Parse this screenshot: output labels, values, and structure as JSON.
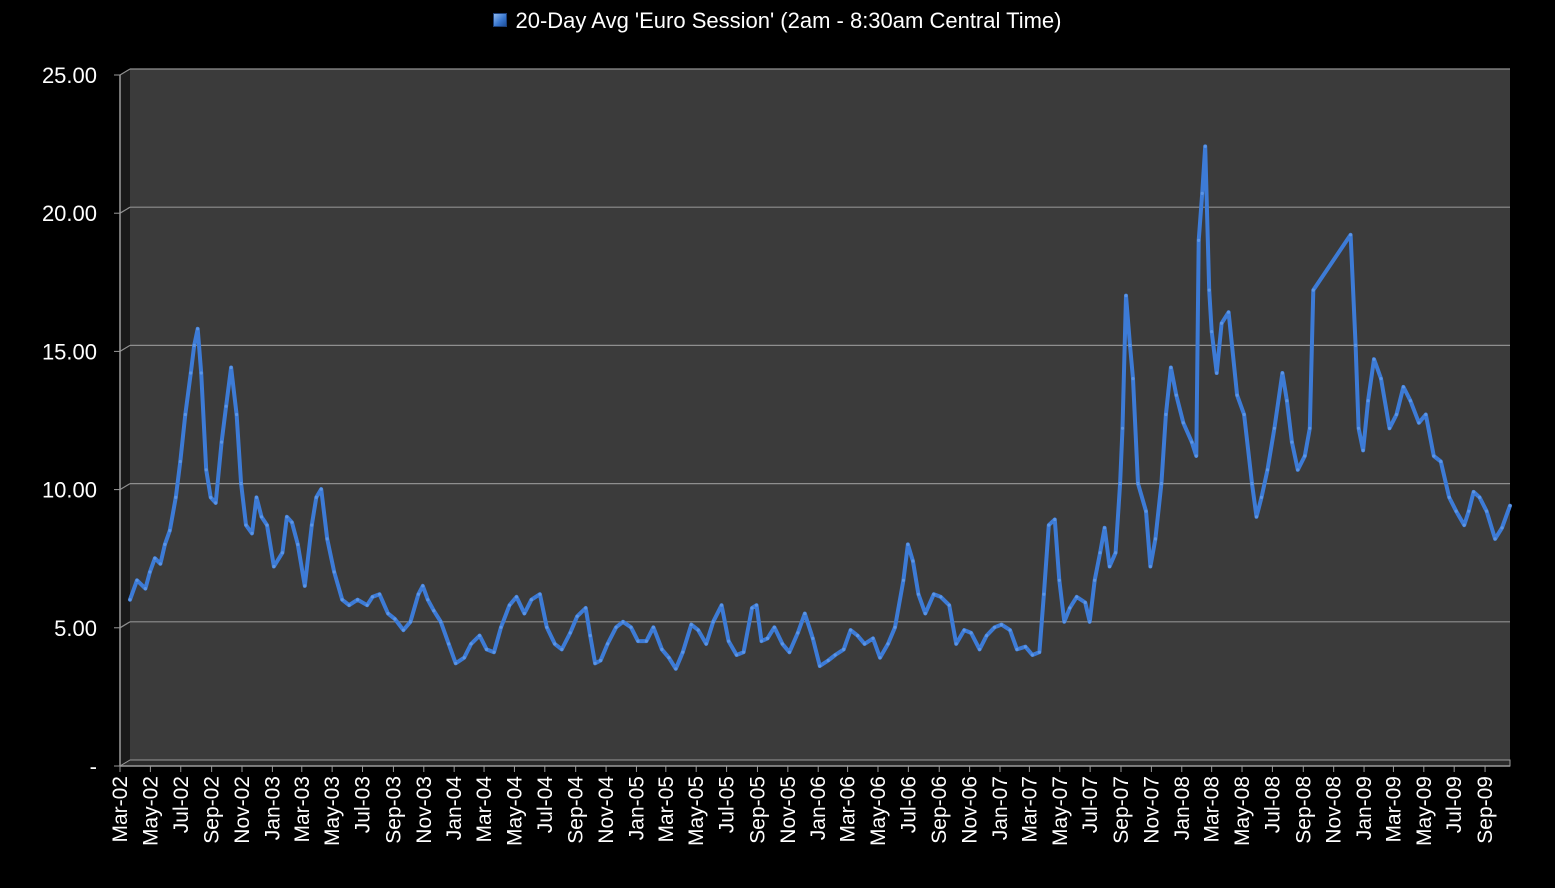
{
  "chart_data": {
    "type": "line",
    "legend": "20-Day Avg 'Euro Session' (2am - 8:30am Central Time)",
    "legend_position": "top",
    "ylim": [
      0,
      25
    ],
    "y_ticks": [
      "-",
      "5.00",
      "10.00",
      "15.00",
      "20.00",
      "25.00"
    ],
    "x_ticks": [
      "Mar-02",
      "May-02",
      "Jul-02",
      "Sep-02",
      "Nov-02",
      "Jan-03",
      "Mar-03",
      "May-03",
      "Jul-03",
      "Sep-03",
      "Nov-03",
      "Jan-04",
      "Mar-04",
      "May-04",
      "Jul-04",
      "Sep-04",
      "Nov-04",
      "Jan-05",
      "Mar-05",
      "May-05",
      "Jul-05",
      "Sep-05",
      "Nov-05",
      "Jan-06",
      "Mar-06",
      "May-06",
      "Jul-06",
      "Sep-06",
      "Nov-06",
      "Jan-07",
      "Mar-07",
      "May-07",
      "Jul-07",
      "Sep-07",
      "Nov-07",
      "Jan-08",
      "Mar-08",
      "May-08",
      "Jul-08",
      "Sep-08",
      "Nov-08",
      "Jan-09",
      "Mar-09",
      "May-09",
      "Jul-09",
      "Sep-09"
    ],
    "grid": true,
    "colors": {
      "line": "#3d7bd6",
      "plot_background": "#3b3b3b",
      "gridline": "#8f8f8f",
      "axis": "#9a9a9a",
      "page_background": "#000000"
    },
    "series": [
      {
        "name": "20-Day Avg 'Euro Session' (2am - 8:30am Central Time)",
        "points": [
          [
            "2002-03-01",
            5.8
          ],
          [
            "2002-03-15",
            6.5
          ],
          [
            "2002-04-01",
            6.2
          ],
          [
            "2002-04-10",
            6.8
          ],
          [
            "2002-04-20",
            7.3
          ],
          [
            "2002-05-01",
            7.1
          ],
          [
            "2002-05-10",
            7.8
          ],
          [
            "2002-05-20",
            8.3
          ],
          [
            "2002-06-01",
            9.5
          ],
          [
            "2002-06-10",
            10.8
          ],
          [
            "2002-06-20",
            12.5
          ],
          [
            "2002-07-01",
            14.0
          ],
          [
            "2002-07-08",
            15.0
          ],
          [
            "2002-07-15",
            15.6
          ],
          [
            "2002-07-22",
            14.0
          ],
          [
            "2002-08-01",
            10.5
          ],
          [
            "2002-08-10",
            9.5
          ],
          [
            "2002-08-20",
            9.3
          ],
          [
            "2002-09-01",
            11.5
          ],
          [
            "2002-09-10",
            12.8
          ],
          [
            "2002-09-20",
            14.2
          ],
          [
            "2002-10-01",
            12.5
          ],
          [
            "2002-10-10",
            10.0
          ],
          [
            "2002-10-20",
            8.5
          ],
          [
            "2002-11-01",
            8.2
          ],
          [
            "2002-11-10",
            9.5
          ],
          [
            "2002-11-20",
            8.8
          ],
          [
            "2002-12-01",
            8.5
          ],
          [
            "2002-12-15",
            7.0
          ],
          [
            "2003-01-01",
            7.5
          ],
          [
            "2003-01-10",
            8.8
          ],
          [
            "2003-01-20",
            8.6
          ],
          [
            "2003-02-01",
            7.8
          ],
          [
            "2003-02-15",
            6.3
          ],
          [
            "2003-03-01",
            8.5
          ],
          [
            "2003-03-10",
            9.5
          ],
          [
            "2003-03-20",
            9.8
          ],
          [
            "2003-04-01",
            8.0
          ],
          [
            "2003-04-15",
            6.8
          ],
          [
            "2003-05-01",
            5.8
          ],
          [
            "2003-05-15",
            5.6
          ],
          [
            "2003-06-01",
            5.8
          ],
          [
            "2003-06-20",
            5.6
          ],
          [
            "2003-07-01",
            5.9
          ],
          [
            "2003-07-15",
            6.0
          ],
          [
            "2003-08-01",
            5.3
          ],
          [
            "2003-08-15",
            5.1
          ],
          [
            "2003-09-01",
            4.7
          ],
          [
            "2003-09-15",
            5.0
          ],
          [
            "2003-10-01",
            6.0
          ],
          [
            "2003-10-10",
            6.3
          ],
          [
            "2003-10-20",
            5.8
          ],
          [
            "2003-11-01",
            5.4
          ],
          [
            "2003-11-15",
            5.0
          ],
          [
            "2003-12-01",
            4.2
          ],
          [
            "2003-12-15",
            3.5
          ],
          [
            "2004-01-01",
            3.7
          ],
          [
            "2004-01-15",
            4.2
          ],
          [
            "2004-02-01",
            4.5
          ],
          [
            "2004-02-15",
            4.0
          ],
          [
            "2004-03-01",
            3.9
          ],
          [
            "2004-03-15",
            4.8
          ],
          [
            "2004-04-01",
            5.6
          ],
          [
            "2004-04-15",
            5.9
          ],
          [
            "2004-05-01",
            5.3
          ],
          [
            "2004-05-15",
            5.8
          ],
          [
            "2004-06-01",
            6.0
          ],
          [
            "2004-06-15",
            4.8
          ],
          [
            "2004-07-01",
            4.2
          ],
          [
            "2004-07-15",
            4.0
          ],
          [
            "2004-08-01",
            4.6
          ],
          [
            "2004-08-15",
            5.2
          ],
          [
            "2004-09-01",
            5.5
          ],
          [
            "2004-09-10",
            4.5
          ],
          [
            "2004-09-20",
            3.5
          ],
          [
            "2004-10-01",
            3.6
          ],
          [
            "2004-10-15",
            4.2
          ],
          [
            "2004-11-01",
            4.8
          ],
          [
            "2004-11-15",
            5.0
          ],
          [
            "2004-12-01",
            4.8
          ],
          [
            "2004-12-15",
            4.3
          ],
          [
            "2005-01-01",
            4.3
          ],
          [
            "2005-01-15",
            4.8
          ],
          [
            "2005-02-01",
            4.0
          ],
          [
            "2005-02-15",
            3.7
          ],
          [
            "2005-03-01",
            3.3
          ],
          [
            "2005-03-15",
            3.9
          ],
          [
            "2005-04-01",
            4.9
          ],
          [
            "2005-04-15",
            4.7
          ],
          [
            "2005-05-01",
            4.2
          ],
          [
            "2005-05-15",
            5.0
          ],
          [
            "2005-06-01",
            5.6
          ],
          [
            "2005-06-15",
            4.3
          ],
          [
            "2005-07-01",
            3.8
          ],
          [
            "2005-07-15",
            3.9
          ],
          [
            "2005-08-01",
            5.5
          ],
          [
            "2005-08-10",
            5.6
          ],
          [
            "2005-08-20",
            4.3
          ],
          [
            "2005-09-01",
            4.4
          ],
          [
            "2005-09-15",
            4.8
          ],
          [
            "2005-10-01",
            4.2
          ],
          [
            "2005-10-15",
            3.9
          ],
          [
            "2005-11-01",
            4.6
          ],
          [
            "2005-11-15",
            5.3
          ],
          [
            "2005-12-01",
            4.4
          ],
          [
            "2005-12-15",
            3.4
          ],
          [
            "2006-01-01",
            3.6
          ],
          [
            "2006-01-15",
            3.8
          ],
          [
            "2006-02-01",
            4.0
          ],
          [
            "2006-02-15",
            4.7
          ],
          [
            "2006-03-01",
            4.5
          ],
          [
            "2006-03-15",
            4.2
          ],
          [
            "2006-04-01",
            4.4
          ],
          [
            "2006-04-15",
            3.7
          ],
          [
            "2006-05-01",
            4.2
          ],
          [
            "2006-05-15",
            4.8
          ],
          [
            "2006-06-01",
            6.5
          ],
          [
            "2006-06-10",
            7.8
          ],
          [
            "2006-06-20",
            7.2
          ],
          [
            "2006-07-01",
            6.0
          ],
          [
            "2006-07-15",
            5.3
          ],
          [
            "2006-08-01",
            6.0
          ],
          [
            "2006-08-15",
            5.9
          ],
          [
            "2006-09-01",
            5.6
          ],
          [
            "2006-09-15",
            4.2
          ],
          [
            "2006-10-01",
            4.7
          ],
          [
            "2006-10-15",
            4.6
          ],
          [
            "2006-11-01",
            4.0
          ],
          [
            "2006-11-15",
            4.5
          ],
          [
            "2006-12-01",
            4.8
          ],
          [
            "2006-12-15",
            4.9
          ],
          [
            "2007-01-01",
            4.7
          ],
          [
            "2007-01-15",
            4.0
          ],
          [
            "2007-02-01",
            4.1
          ],
          [
            "2007-02-15",
            3.8
          ],
          [
            "2007-03-01",
            3.9
          ],
          [
            "2007-03-10",
            6.0
          ],
          [
            "2007-03-20",
            8.5
          ],
          [
            "2007-04-01",
            8.7
          ],
          [
            "2007-04-10",
            6.5
          ],
          [
            "2007-04-20",
            5.0
          ],
          [
            "2007-05-01",
            5.5
          ],
          [
            "2007-05-15",
            5.9
          ],
          [
            "2007-06-01",
            5.7
          ],
          [
            "2007-06-10",
            5.0
          ],
          [
            "2007-06-20",
            6.5
          ],
          [
            "2007-07-01",
            7.5
          ],
          [
            "2007-07-10",
            8.4
          ],
          [
            "2007-07-20",
            7.0
          ],
          [
            "2007-08-01",
            7.5
          ],
          [
            "2007-08-10",
            10.0
          ],
          [
            "2007-08-15",
            12.0
          ],
          [
            "2007-08-22",
            16.8
          ],
          [
            "2007-08-30",
            15.0
          ],
          [
            "2007-09-05",
            13.8
          ],
          [
            "2007-09-15",
            10.0
          ],
          [
            "2007-10-01",
            9.0
          ],
          [
            "2007-10-10",
            7.0
          ],
          [
            "2007-10-20",
            8.0
          ],
          [
            "2007-11-01",
            10.0
          ],
          [
            "2007-11-10",
            12.5
          ],
          [
            "2007-11-20",
            14.2
          ],
          [
            "2007-12-01",
            13.2
          ],
          [
            "2007-12-15",
            12.2
          ],
          [
            "2008-01-01",
            11.5
          ],
          [
            "2008-01-10",
            11.0
          ],
          [
            "2008-01-15",
            18.8
          ],
          [
            "2008-01-22",
            20.5
          ],
          [
            "2008-01-28",
            22.2
          ],
          [
            "2008-02-05",
            17.0
          ],
          [
            "2008-02-10",
            15.5
          ],
          [
            "2008-02-20",
            14.0
          ],
          [
            "2008-03-01",
            15.8
          ],
          [
            "2008-03-15",
            16.2
          ],
          [
            "2008-04-01",
            13.2
          ],
          [
            "2008-04-15",
            12.5
          ],
          [
            "2008-05-01",
            10.0
          ],
          [
            "2008-05-10",
            8.8
          ],
          [
            "2008-05-20",
            9.5
          ],
          [
            "2008-06-01",
            10.5
          ],
          [
            "2008-06-15",
            12.0
          ],
          [
            "2008-07-01",
            14.0
          ],
          [
            "2008-07-10",
            13.0
          ],
          [
            "2008-07-20",
            11.5
          ],
          [
            "2008-08-01",
            10.5
          ],
          [
            "2008-08-15",
            11.0
          ],
          [
            "2008-08-25",
            12.0
          ],
          [
            "2008-09-01",
            17.0
          ],
          [
            "2008-11-15",
            19.0
          ],
          [
            "2008-11-25",
            15.0
          ],
          [
            "2008-12-01",
            12.0
          ],
          [
            "2008-12-10",
            11.2
          ],
          [
            "2008-12-20",
            13.0
          ],
          [
            "2009-01-01",
            14.5
          ],
          [
            "2009-01-15",
            13.8
          ],
          [
            "2009-02-01",
            12.0
          ],
          [
            "2009-02-15",
            12.5
          ],
          [
            "2009-03-01",
            13.5
          ],
          [
            "2009-03-15",
            13.0
          ],
          [
            "2009-04-01",
            12.2
          ],
          [
            "2009-04-15",
            12.5
          ],
          [
            "2009-05-01",
            11.0
          ],
          [
            "2009-05-15",
            10.8
          ],
          [
            "2009-06-01",
            9.5
          ],
          [
            "2009-06-15",
            9.0
          ],
          [
            "2009-07-01",
            8.5
          ],
          [
            "2009-07-10",
            9.0
          ],
          [
            "2009-07-20",
            9.7
          ],
          [
            "2009-08-01",
            9.5
          ],
          [
            "2009-08-15",
            9.0
          ],
          [
            "2009-09-01",
            8.0
          ],
          [
            "2009-09-15",
            8.4
          ],
          [
            "2009-10-01",
            9.2
          ]
        ]
      }
    ]
  }
}
